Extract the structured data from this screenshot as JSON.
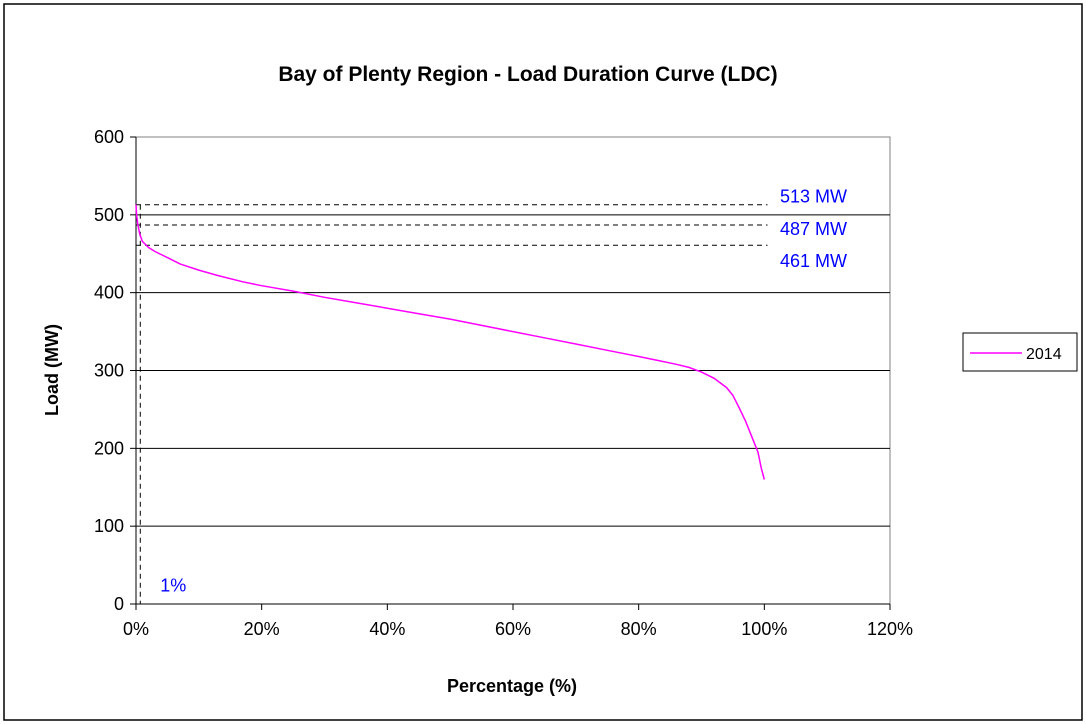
{
  "chart_data": {
    "type": "line",
    "title": "Bay of Plenty Region -  Load Duration Curve (LDC)",
    "xlabel": "Percentage (%)",
    "ylabel": "Load (MW)",
    "xlim": [
      0,
      120
    ],
    "ylim": [
      0,
      600
    ],
    "x_ticks": [
      0,
      20,
      40,
      60,
      80,
      100,
      120
    ],
    "x_tick_labels": [
      "0%",
      "20%",
      "40%",
      "60%",
      "80%",
      "100%",
      "120%"
    ],
    "y_ticks": [
      0,
      100,
      200,
      300,
      400,
      500,
      600
    ],
    "y_tick_labels": [
      "0",
      "100",
      "200",
      "300",
      "400",
      "500",
      "600"
    ],
    "grid": "horizontal",
    "legend_position": "right",
    "series": [
      {
        "name": "2014",
        "color": "#ff00ff",
        "x": [
          0,
          0.1,
          0.3,
          0.6,
          1,
          1.5,
          2,
          3,
          4,
          5,
          7,
          10,
          13,
          17,
          20,
          25,
          30,
          35,
          40,
          45,
          50,
          55,
          60,
          65,
          70,
          75,
          80,
          83,
          86,
          88,
          90,
          92,
          94,
          95,
          96,
          97,
          98,
          99,
          99.5,
          100
        ],
        "values": [
          513,
          500,
          487,
          475,
          466,
          462,
          458,
          453,
          449,
          445,
          437,
          429,
          422,
          414,
          409,
          402,
          394,
          387,
          380,
          373,
          366,
          358,
          350,
          342,
          334,
          326,
          318,
          313,
          308,
          304,
          298,
          290,
          278,
          268,
          252,
          235,
          215,
          195,
          175,
          160
        ]
      }
    ],
    "annotations": [
      {
        "text": "513 MW",
        "value": 513,
        "color": "#0000ff"
      },
      {
        "text": "487 MW",
        "value": 487,
        "color": "#0000ff"
      },
      {
        "text": "461 MW",
        "value": 461,
        "color": "#0000ff"
      },
      {
        "text": "1%",
        "value": 1,
        "color": "#0000ff"
      }
    ]
  }
}
